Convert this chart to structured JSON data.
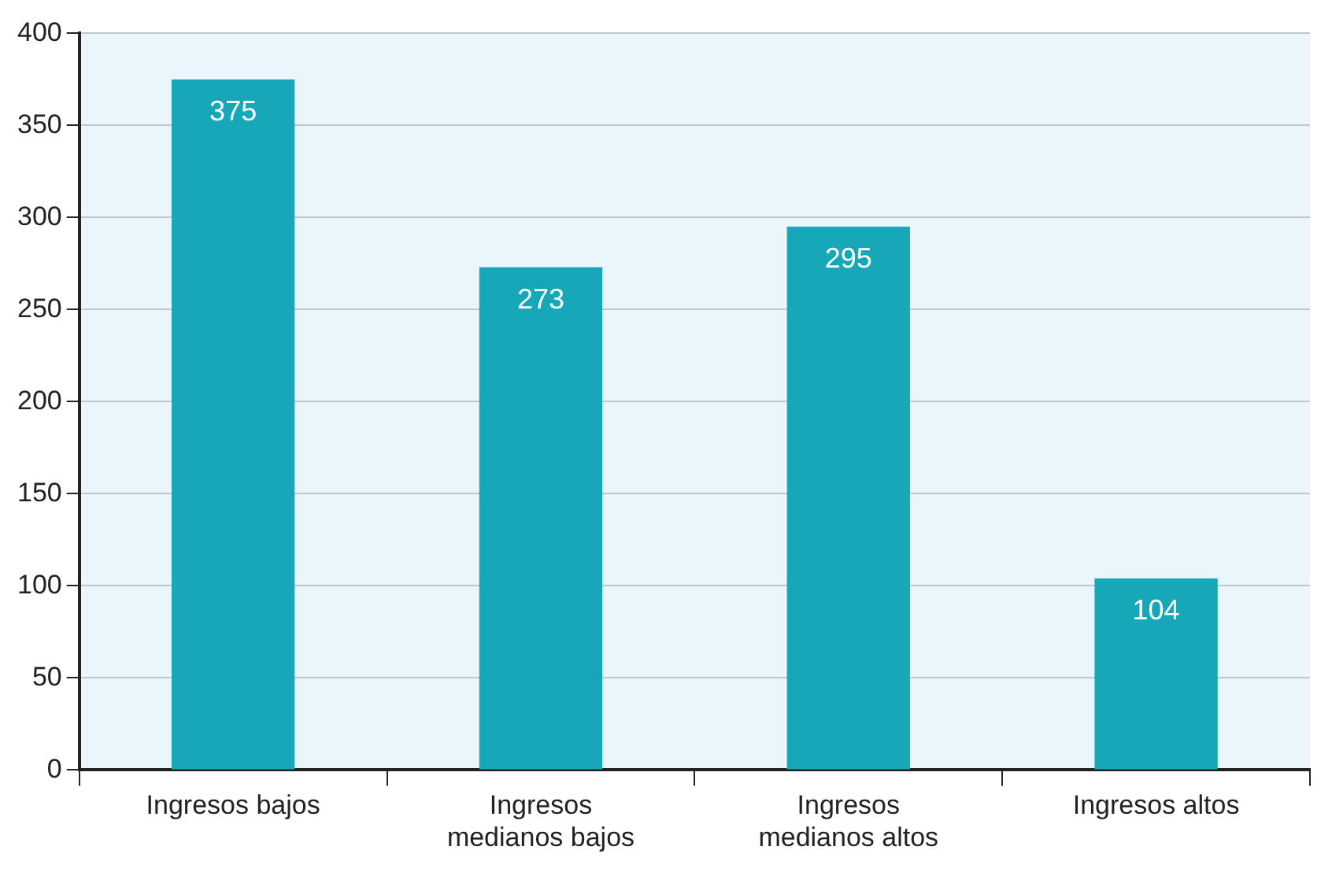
{
  "chart_data": {
    "type": "bar",
    "categories": [
      "Ingresos bajos",
      "Ingresos medianos bajos",
      "Ingresos medianos altos",
      "Ingresos altos"
    ],
    "values": [
      375,
      273,
      295,
      104
    ],
    "color": "#16a8b8",
    "data_labels": true,
    "ylim": [
      0,
      400
    ],
    "yticks": [
      0,
      50,
      100,
      150,
      200,
      250,
      300,
      350,
      400
    ],
    "grid": "y"
  }
}
